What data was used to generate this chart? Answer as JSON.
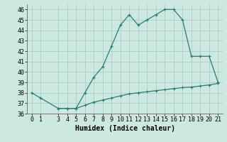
{
  "line1_x": [
    0,
    1,
    3,
    4,
    5,
    6,
    7,
    8,
    9,
    10,
    11,
    12,
    13,
    14,
    15,
    16,
    17,
    18,
    19,
    20,
    21
  ],
  "line1_y": [
    38,
    37.5,
    36.5,
    36.5,
    36.5,
    38,
    39.5,
    40.5,
    42.5,
    44.5,
    45.5,
    44.5,
    45,
    45.5,
    46,
    46,
    45,
    41.5,
    41.5,
    41.5,
    39
  ],
  "line2_x": [
    3,
    4,
    5,
    6,
    7,
    8,
    9,
    10,
    11,
    12,
    13,
    14,
    15,
    16,
    17,
    18,
    19,
    20,
    21
  ],
  "line2_y": [
    36.5,
    36.5,
    36.5,
    36.8,
    37.1,
    37.3,
    37.5,
    37.7,
    37.9,
    38.0,
    38.1,
    38.2,
    38.3,
    38.4,
    38.5,
    38.55,
    38.65,
    38.75,
    38.9
  ],
  "line_color": "#2a7d6e",
  "bg_color": "#cce8e0",
  "grid_color": "#aad0c8",
  "xlabel": "Humidex (Indice chaleur)",
  "xlim": [
    -0.5,
    21.5
  ],
  "ylim": [
    36,
    46.5
  ],
  "yticks": [
    36,
    37,
    38,
    39,
    40,
    41,
    42,
    43,
    44,
    45,
    46
  ],
  "xticks": [
    0,
    1,
    3,
    4,
    5,
    6,
    7,
    8,
    9,
    10,
    11,
    12,
    13,
    14,
    15,
    16,
    17,
    18,
    19,
    20,
    21
  ],
  "font_size_label": 7,
  "font_size_tick": 6,
  "marker": "+"
}
